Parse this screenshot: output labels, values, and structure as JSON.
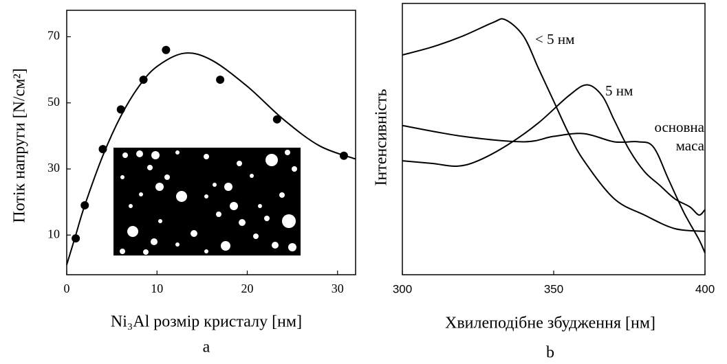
{
  "chart_data": [
    {
      "type": "scatter",
      "panel_label": "a",
      "x_label": "Ni₃Al розмір кристалу [нм]",
      "y_label": "Потік напруги [N/см²]",
      "x": [
        1,
        2,
        4,
        6,
        8.5,
        11,
        17,
        23.3,
        30.7
      ],
      "values": [
        9,
        19,
        36,
        48,
        57,
        66,
        57,
        45,
        34
      ],
      "fit": {
        "x": [
          0,
          1,
          2,
          4,
          6,
          8,
          10,
          13,
          16,
          20,
          24,
          28,
          32
        ],
        "values": [
          1,
          10,
          19,
          34,
          46,
          55,
          61,
          65,
          63,
          55,
          45,
          37,
          33
        ]
      },
      "color": "#000000",
      "xlim": [
        0,
        32
      ],
      "ylim": [
        -2,
        78
      ],
      "xticks": [
        0,
        10,
        20,
        30
      ],
      "yticks": [
        10,
        30,
        50,
        70
      ]
    },
    {
      "type": "line",
      "panel_label": "b",
      "x_label": "Хвилеподібне збудження [нм]",
      "y_label": "Інтенсивність",
      "series": [
        {
          "name": "< 5 нм",
          "color": "#000000",
          "x": [
            300,
            310,
            320,
            330,
            334,
            340,
            345,
            350,
            355,
            360,
            370,
            380,
            390,
            400
          ],
          "values": [
            81,
            84,
            88,
            93,
            94,
            88,
            76,
            64,
            52,
            42,
            28,
            22,
            17,
            16
          ]
        },
        {
          "name": "5 нм",
          "color": "#000000",
          "x": [
            300,
            310,
            318,
            325,
            335,
            345,
            355,
            361,
            366,
            370,
            375,
            380,
            385,
            390,
            395,
            398,
            400
          ],
          "values": [
            42,
            41,
            40,
            42,
            48,
            56,
            66,
            70,
            66,
            57,
            46,
            38,
            33,
            28,
            25,
            22,
            24
          ]
        },
        {
          "name": "основна маса",
          "color": "#000000",
          "x": [
            300,
            320,
            340,
            350,
            360,
            370,
            378,
            383,
            388,
            393,
            398,
            400
          ],
          "values": [
            55,
            51,
            49,
            51,
            52,
            49,
            49,
            47,
            35,
            23,
            13,
            8
          ]
        }
      ],
      "xlim": [
        300,
        400
      ],
      "ylim": [
        0,
        100
      ],
      "xticks": [
        300,
        350,
        400
      ]
    }
  ]
}
